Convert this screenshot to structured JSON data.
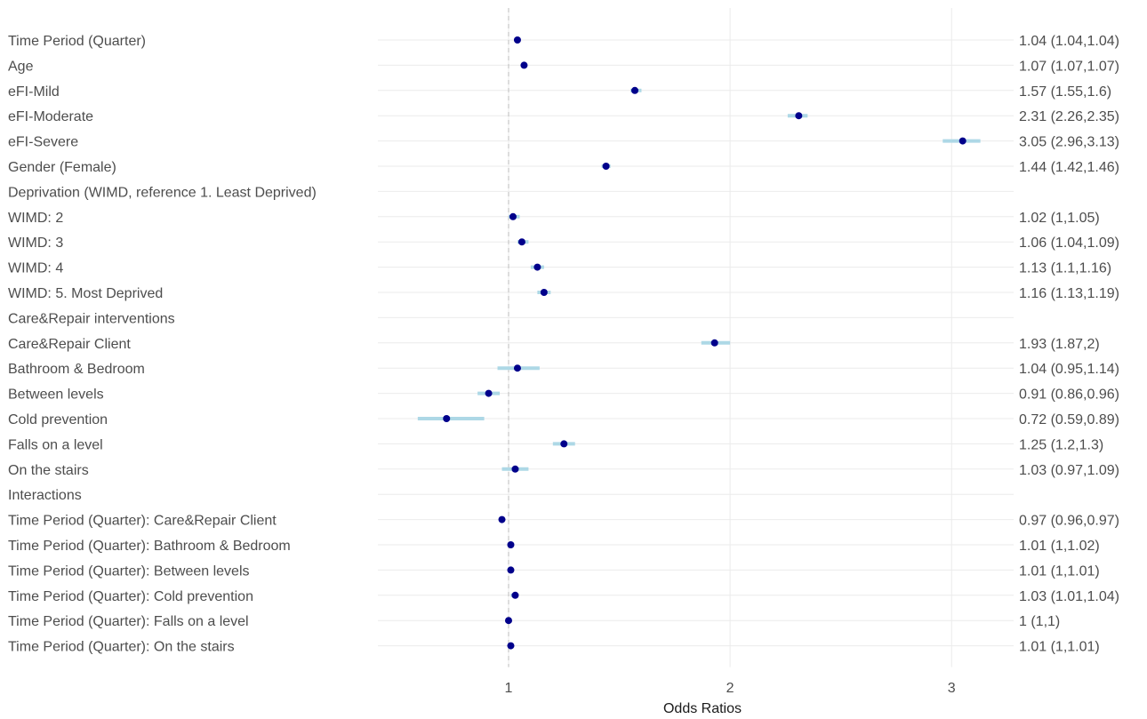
{
  "chart_data": {
    "type": "forest",
    "xlabel": "Odds Ratios",
    "xlim": [
      0.41,
      3.28
    ],
    "xticks": [
      1,
      2,
      3
    ],
    "xtick_labels": [
      "1",
      "2",
      "3"
    ],
    "reference_line": 1,
    "grid": true,
    "rows": [
      {
        "label": "Time Period (Quarter)",
        "or": 1.04,
        "lo": 1.04,
        "hi": 1.04,
        "text": "1.04 (1.04,1.04)"
      },
      {
        "label": "Age",
        "or": 1.07,
        "lo": 1.07,
        "hi": 1.07,
        "text": "1.07 (1.07,1.07)"
      },
      {
        "label": "eFI-Mild",
        "or": 1.57,
        "lo": 1.55,
        "hi": 1.6,
        "text": "1.57 (1.55,1.6)"
      },
      {
        "label": "eFI-Moderate",
        "or": 2.31,
        "lo": 2.26,
        "hi": 2.35,
        "text": "2.31 (2.26,2.35)"
      },
      {
        "label": "eFI-Severe",
        "or": 3.05,
        "lo": 2.96,
        "hi": 3.13,
        "text": "3.05 (2.96,3.13)"
      },
      {
        "label": "Gender (Female)",
        "or": 1.44,
        "lo": 1.42,
        "hi": 1.46,
        "text": "1.44 (1.42,1.46)"
      },
      {
        "label": "Deprivation (WIMD, reference 1. Least Deprived)",
        "or": null,
        "lo": null,
        "hi": null,
        "text": ""
      },
      {
        "label": "WIMD: 2",
        "or": 1.02,
        "lo": 1,
        "hi": 1.05,
        "text": "1.02 (1,1.05)"
      },
      {
        "label": "WIMD: 3",
        "or": 1.06,
        "lo": 1.04,
        "hi": 1.09,
        "text": "1.06 (1.04,1.09)"
      },
      {
        "label": "WIMD: 4",
        "or": 1.13,
        "lo": 1.1,
        "hi": 1.16,
        "text": "1.13 (1.1,1.16)"
      },
      {
        "label": "WIMD: 5. Most Deprived",
        "or": 1.16,
        "lo": 1.13,
        "hi": 1.19,
        "text": "1.16 (1.13,1.19)"
      },
      {
        "label": "Care&Repair interventions",
        "or": null,
        "lo": null,
        "hi": null,
        "text": ""
      },
      {
        "label": "Care&Repair Client",
        "or": 1.93,
        "lo": 1.87,
        "hi": 2,
        "text": "1.93 (1.87,2)"
      },
      {
        "label": "Bathroom & Bedroom",
        "or": 1.04,
        "lo": 0.95,
        "hi": 1.14,
        "text": "1.04 (0.95,1.14)"
      },
      {
        "label": "Between levels",
        "or": 0.91,
        "lo": 0.86,
        "hi": 0.96,
        "text": "0.91 (0.86,0.96)"
      },
      {
        "label": "Cold prevention",
        "or": 0.72,
        "lo": 0.59,
        "hi": 0.89,
        "text": "0.72 (0.59,0.89)"
      },
      {
        "label": "Falls on a level",
        "or": 1.25,
        "lo": 1.2,
        "hi": 1.3,
        "text": "1.25 (1.2,1.3)"
      },
      {
        "label": "On the stairs",
        "or": 1.03,
        "lo": 0.97,
        "hi": 1.09,
        "text": "1.03 (0.97,1.09)"
      },
      {
        "label": "Interactions",
        "or": null,
        "lo": null,
        "hi": null,
        "text": ""
      },
      {
        "label": "Time Period (Quarter): Care&Repair Client",
        "or": 0.97,
        "lo": 0.96,
        "hi": 0.97,
        "text": "0.97 (0.96,0.97)"
      },
      {
        "label": "Time Period (Quarter): Bathroom & Bedroom",
        "or": 1.01,
        "lo": 1,
        "hi": 1.02,
        "text": "1.01 (1,1.02)"
      },
      {
        "label": "Time Period (Quarter): Between levels",
        "or": 1.01,
        "lo": 1,
        "hi": 1.01,
        "text": "1.01 (1,1.01)"
      },
      {
        "label": "Time Period (Quarter): Cold prevention",
        "or": 1.03,
        "lo": 1.01,
        "hi": 1.04,
        "text": "1.03 (1.01,1.04)"
      },
      {
        "label": "Time Period (Quarter): Falls on a level",
        "or": 1,
        "lo": 1,
        "hi": 1,
        "text": "1 (1,1)"
      },
      {
        "label": "Time Period (Quarter): On the stairs",
        "or": 1.01,
        "lo": 1,
        "hi": 1.01,
        "text": "1.01 (1,1.01)"
      }
    ],
    "colors": {
      "point": "#00008b",
      "ci": "#add8e6",
      "grid": "#ebebeb",
      "reference": "#bdbdbd"
    }
  }
}
